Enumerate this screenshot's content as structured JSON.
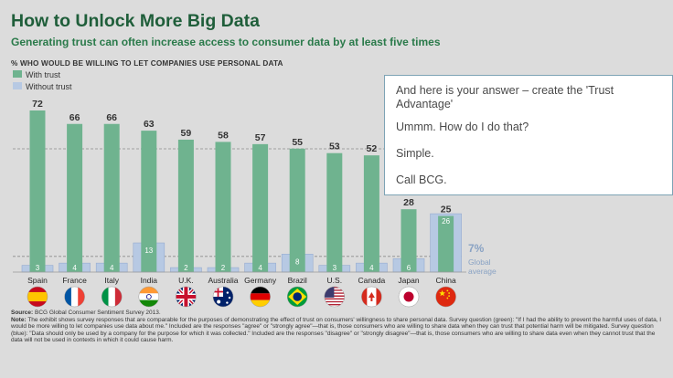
{
  "colors": {
    "background": "#dcdcdc",
    "title": "#1f5e3a",
    "subtitle": "#2a7a4a",
    "with_trust": "#6fb38f",
    "without_trust": "#b7c9e3",
    "without_trust_border": "#95abd0",
    "value_label": "#333333",
    "global_average": "#8aa3c4"
  },
  "header": {
    "title": "How to Unlock More Big Data",
    "subtitle": "Generating trust can often increase access to consumer data by at least five times",
    "axis_caption": "% WHO WOULD BE WILLING TO LET COMPANIES USE PERSONAL DATA"
  },
  "chart_data": {
    "type": "bar",
    "title": "How to Unlock More Big Data",
    "ylabel": "% who would be willing to let companies use personal data",
    "ylim": [
      0,
      75
    ],
    "categories": [
      "Spain",
      "France",
      "Italy",
      "India",
      "U.K.",
      "Australia",
      "Germany",
      "Brazil",
      "U.S.",
      "Canada",
      "Japan",
      "China"
    ],
    "series": [
      {
        "name": "With trust",
        "values": [
          72,
          66,
          66,
          63,
          59,
          58,
          57,
          55,
          53,
          52,
          28,
          25
        ]
      },
      {
        "name": "Without trust",
        "values": [
          3,
          4,
          4,
          13,
          2,
          2,
          4,
          8,
          3,
          4,
          6,
          26
        ]
      }
    ],
    "annotations": {
      "global_average_value": "7%",
      "global_average_label": [
        "Global",
        "average"
      ]
    },
    "legend": [
      "With trust",
      "Without trust"
    ]
  },
  "flags": [
    "spain-flag-icon",
    "france-flag-icon",
    "italy-flag-icon",
    "india-flag-icon",
    "uk-flag-icon",
    "australia-flag-icon",
    "germany-flag-icon",
    "brazil-flag-icon",
    "us-flag-icon",
    "canada-flag-icon",
    "japan-flag-icon",
    "china-flag-icon"
  ],
  "callout": {
    "lines": [
      "And here is your answer – create the 'Trust Advantage'",
      "Ummm.  How do I do that?",
      "Simple.",
      "Call BCG."
    ]
  },
  "footer": {
    "source_label": "Source:",
    "source_text": "BCG Global Consumer Sentiment Survey 2013.",
    "note_label": "Note:",
    "note_text": "The exhibit shows survey responses that are comparable for the purposes of demonstrating the effect of trust on consumers' willingness to share personal data. Survey question (green): \"If I had the ability to prevent the harmful uses of data, I would be more willing to let companies use data about me.\" Included are the responses \"agree\" or \"strongly agree\"—that is, those consumers who are willing to share data when they can trust that potential harm will be mitigated. Survey question (blue): \"Data should only be used by a company for the purpose for which it was collected.\" Included are the responses \"disagree\" or \"strongly disagree\"—that is, those consumers who are willing to share data even when they cannot trust that the data will not be used in contexts in which it could cause harm."
  }
}
